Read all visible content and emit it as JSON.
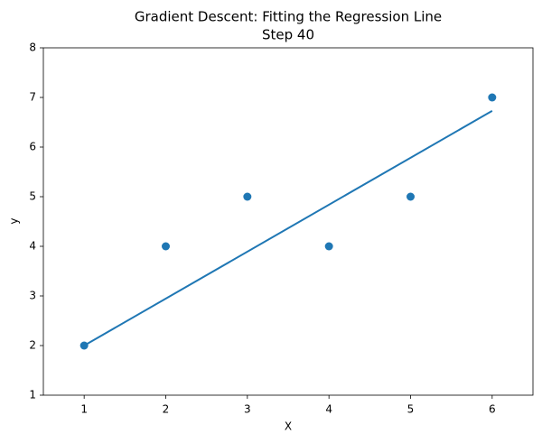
{
  "chart_data": {
    "type": "scatter",
    "title": "Gradient Descent: Fitting the Regression Line",
    "subtitle": "Step 40",
    "x_label": "X",
    "y_label": "y",
    "points": {
      "x": [
        1,
        2,
        3,
        4,
        5,
        6
      ],
      "y": [
        2,
        4,
        5,
        4,
        5,
        7
      ],
      "color": "#1f77b4"
    },
    "fit_line": {
      "x": [
        1,
        6
      ],
      "y": [
        2.0,
        6.73
      ],
      "color": "#1f77b4"
    },
    "xlim": [
      0.5,
      6.5
    ],
    "ylim": [
      1,
      8
    ],
    "xticks": [
      1,
      2,
      3,
      4,
      5,
      6
    ],
    "yticks": [
      1,
      2,
      3,
      4,
      5,
      6,
      7,
      8
    ],
    "grid": false
  }
}
